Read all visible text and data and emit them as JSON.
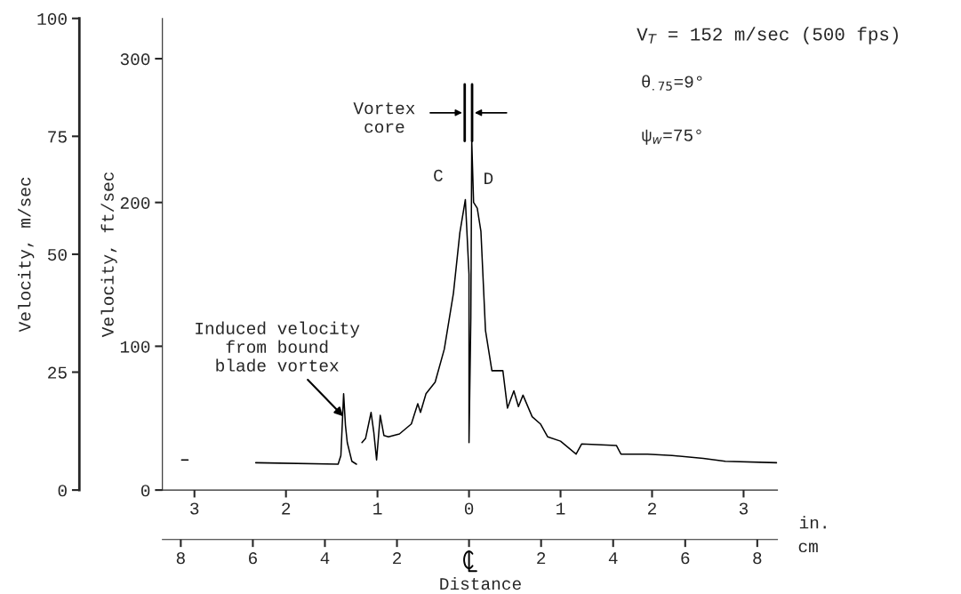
{
  "chart_data": {
    "type": "line",
    "xlabel": "in.",
    "x2label": "cm",
    "ylabel": "Velocity, ft/sec",
    "y2label": "Velocity, m/sec",
    "x": [
      -3.14,
      -3.07,
      null,
      -2.33,
      -1.43,
      -1.4,
      -1.37,
      -1.35,
      -1.33,
      -1.28,
      -1.23,
      null,
      -1.17,
      -1.13,
      -1.07,
      -1.04,
      -1.01,
      -0.97,
      -0.93,
      -0.88,
      -0.76,
      -0.63,
      -0.56,
      -0.53,
      -0.47,
      -0.37,
      -0.27,
      -0.17,
      -0.1,
      -0.04,
      0.0,
      0.0,
      0.02,
      0.03,
      0.05,
      0.09,
      0.13,
      0.18,
      0.25,
      0.37,
      0.42,
      0.49,
      0.54,
      0.59,
      0.69,
      0.78,
      0.86,
      1.0,
      1.17,
      1.23,
      1.61,
      1.66,
      1.95,
      2.22,
      2.56,
      2.8,
      3.36
    ],
    "series": [
      {
        "color": "#000000",
        "values": [
          21,
          21,
          null,
          19,
          18,
          24,
          67,
          45,
          33,
          20,
          18,
          null,
          33,
          36,
          54,
          40,
          21,
          52,
          38,
          37,
          39,
          46,
          60,
          54,
          67,
          75,
          98,
          137,
          179,
          202,
          150,
          33,
          120,
          243,
          200,
          196,
          180,
          111,
          83,
          83,
          57,
          69,
          58,
          66,
          51,
          46,
          37,
          34,
          25,
          32,
          31,
          25,
          25,
          24,
          22,
          20,
          19
        ]
      }
    ],
    "xlim": [
      -3.35,
      3.37
    ],
    "xticks": [
      {
        "value": -3,
        "label": "3"
      },
      {
        "value": -2,
        "label": "2"
      },
      {
        "value": -1,
        "label": "1"
      },
      0,
      1,
      2,
      3
    ],
    "x2lim": [
      -8.51,
      8.56
    ],
    "x2ticks": [
      {
        "value": -8,
        "label": "8"
      },
      {
        "value": -6,
        "label": "6"
      },
      {
        "value": -4,
        "label": "4"
      },
      {
        "value": -2,
        "label": "2"
      },
      {
        "value": 0,
        "label": null
      },
      2,
      4,
      6,
      8
    ],
    "ylim": [
      0,
      328
    ],
    "yticks": [
      0,
      100,
      200,
      300
    ],
    "y2lim": [
      0,
      100
    ],
    "y2ticks": [
      0,
      25,
      50,
      75,
      100
    ],
    "marker": "none",
    "line_style": "solid",
    "grid": false,
    "legend": false,
    "annotations": [
      {
        "text": "Induced velocity\nfrom bound\nblade vortex",
        "x": -1.355,
        "y": 50
      },
      "Vortex\ncore",
      {
        "text": "C",
        "x": -0.04,
        "y": 202
      },
      {
        "text": "D",
        "x": 0.05,
        "y": 200
      },
      "V$_{T}$ = 152 m/sec (500 fps)",
      "θ$_{.75}$=9°",
      "ψ$_{w}$=75°",
      "Distance"
    ]
  }
}
